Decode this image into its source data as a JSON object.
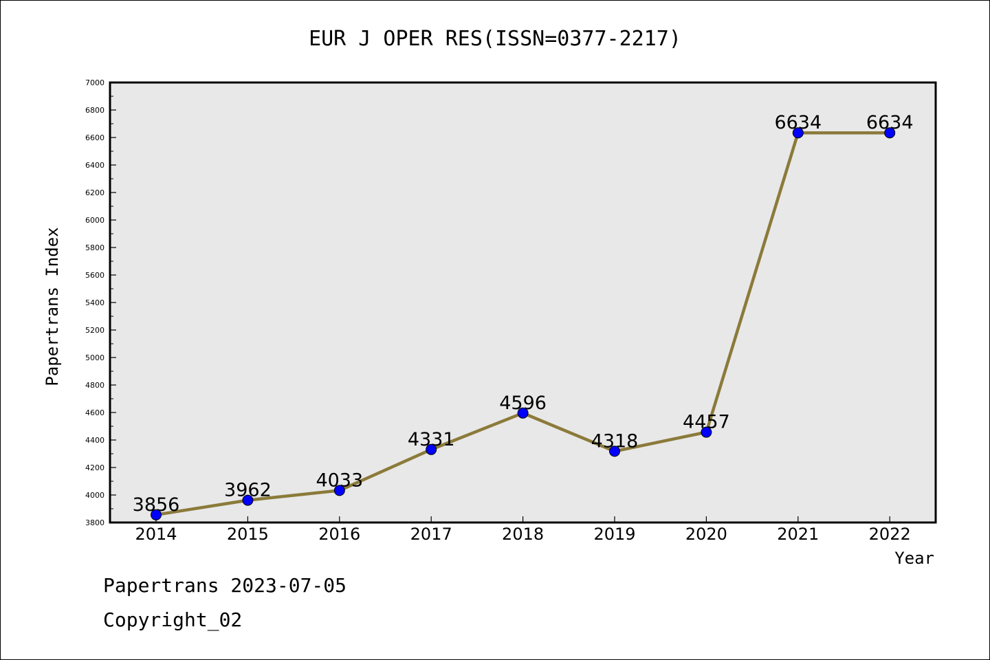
{
  "chart_data": {
    "type": "line",
    "title": "EUR J OPER RES(ISSN=0377-2217)",
    "xlabel": "Year",
    "ylabel": "Papertrans Index",
    "categories": [
      "2014",
      "2015",
      "2016",
      "2017",
      "2018",
      "2019",
      "2020",
      "2021",
      "2022"
    ],
    "values": [
      3856,
      3962,
      4033,
      4331,
      4596,
      4318,
      4457,
      6634,
      6634
    ],
    "data_labels": [
      "3856",
      "3962",
      "4033",
      "4331",
      "4596",
      "4318",
      "4457",
      "6634",
      "6634"
    ],
    "ylim": [
      3800,
      7000
    ],
    "yticks": [
      "3800",
      "4000",
      "4200",
      "4400",
      "4600",
      "4800",
      "5000",
      "5200",
      "5400",
      "5600",
      "5800",
      "6000",
      "6200",
      "6400",
      "6600",
      "6800",
      "7000"
    ],
    "grid": false,
    "legend": "none",
    "colors": {
      "line": "#8b7a3a",
      "marker": "#0000ff",
      "plot_background": "#e8e8e8"
    }
  },
  "footer": {
    "line1": "Papertrans 2023-07-05",
    "line2": "Copyright_02"
  }
}
